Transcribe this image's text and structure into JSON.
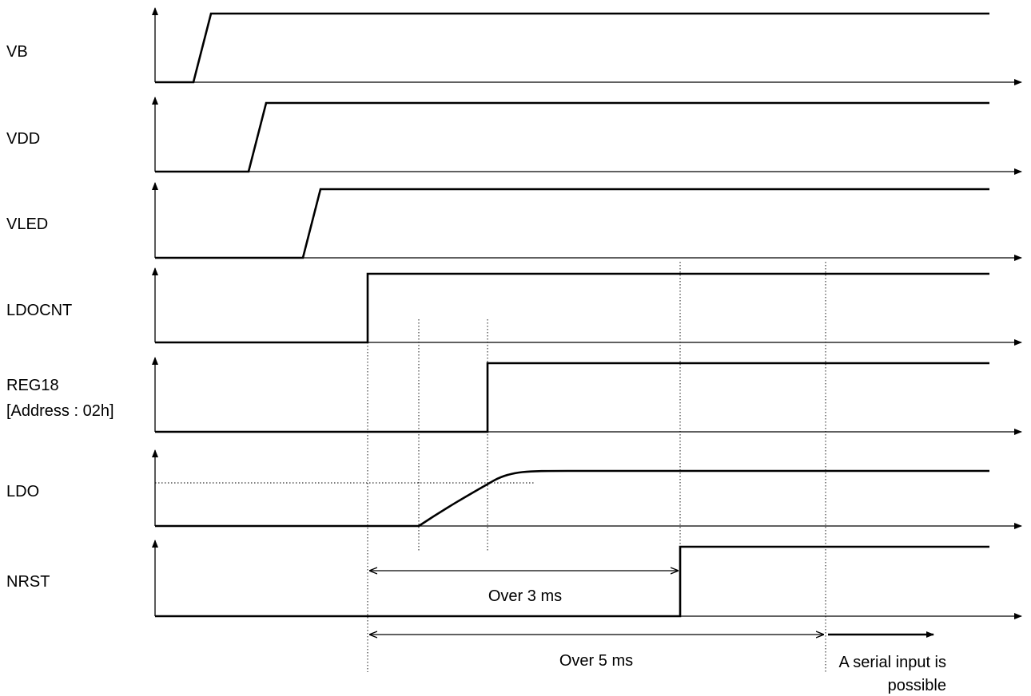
{
  "signals": [
    {
      "label": "VB"
    },
    {
      "label": "VDD"
    },
    {
      "label": "VLED"
    },
    {
      "label": "LDOCNT"
    },
    {
      "label": "REG18",
      "sublabel": "[Address : 02h]"
    },
    {
      "label": "LDO"
    },
    {
      "label": "NRST"
    }
  ],
  "annotations": {
    "over3": "Over 3 ms",
    "over5": "Over 5 ms",
    "serial_line1": "A serial input is",
    "serial_line2": "possible"
  }
}
